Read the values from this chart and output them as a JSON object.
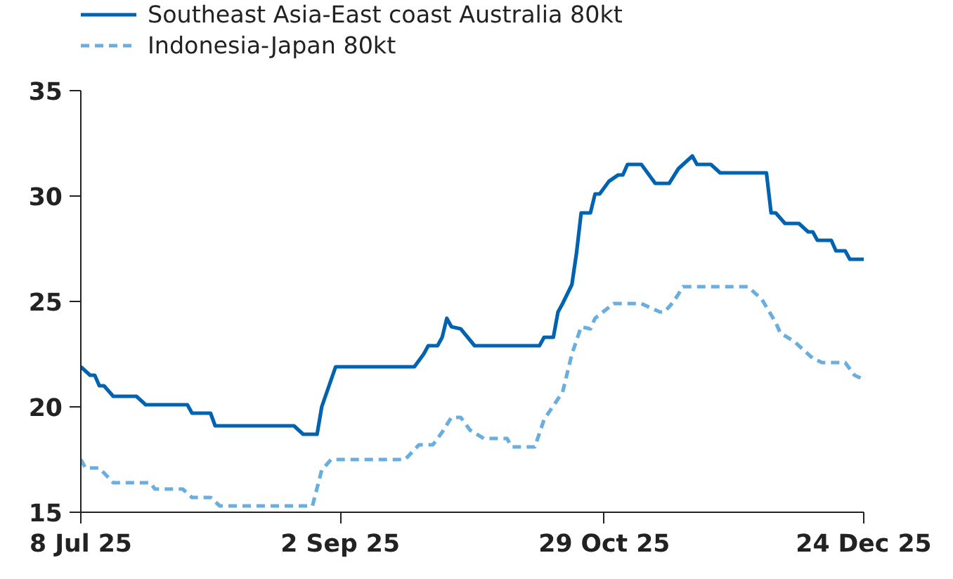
{
  "chart_data": {
    "type": "line",
    "legend": "top",
    "grid": false,
    "xlim": [
      "2025-07-08",
      "2025-12-24"
    ],
    "ylim": [
      15,
      35
    ],
    "yticks": [
      15,
      20,
      25,
      30,
      35
    ],
    "xticks": [
      {
        "value": "2025-07-08",
        "label": "8 Jul 25"
      },
      {
        "value": "2025-09-02",
        "label": "2 Sep 25"
      },
      {
        "value": "2025-10-29",
        "label": "29 Oct 25"
      },
      {
        "value": "2025-12-24",
        "label": "24 Dec 25"
      }
    ],
    "series": [
      {
        "name": "Southeast Asia-East coast Australia 80kt",
        "color": "#0063b0",
        "line_style": "solid",
        "x": [
          "2025-07-08",
          "2025-07-10",
          "2025-07-11",
          "2025-07-12",
          "2025-07-13",
          "2025-07-15",
          "2025-07-20",
          "2025-07-22",
          "2025-07-31",
          "2025-08-01",
          "2025-08-05",
          "2025-08-06",
          "2025-08-23",
          "2025-08-25",
          "2025-08-28",
          "2025-08-29",
          "2025-09-01",
          "2025-09-18",
          "2025-09-20",
          "2025-09-21",
          "2025-09-23",
          "2025-09-24",
          "2025-09-25",
          "2025-09-26",
          "2025-09-28",
          "2025-10-01",
          "2025-10-15",
          "2025-10-16",
          "2025-10-18",
          "2025-10-19",
          "2025-10-20",
          "2025-10-22",
          "2025-10-23",
          "2025-10-24",
          "2025-10-26",
          "2025-10-27",
          "2025-10-28",
          "2025-10-30",
          "2025-11-01",
          "2025-11-02",
          "2025-11-03",
          "2025-11-06",
          "2025-11-08",
          "2025-11-09",
          "2025-11-12",
          "2025-11-14",
          "2025-11-15",
          "2025-11-17",
          "2025-11-18",
          "2025-11-21",
          "2025-11-23",
          "2025-12-03",
          "2025-12-04",
          "2025-12-05",
          "2025-12-07",
          "2025-12-10",
          "2025-12-12",
          "2025-12-13",
          "2025-12-14",
          "2025-12-17",
          "2025-12-18",
          "2025-12-20",
          "2025-12-21",
          "2025-12-24"
        ],
        "values": [
          21.9,
          21.5,
          21.5,
          21.0,
          21.0,
          20.5,
          20.5,
          20.1,
          20.1,
          19.7,
          19.7,
          19.1,
          19.1,
          18.7,
          18.7,
          20.0,
          21.9,
          21.9,
          22.5,
          22.9,
          22.9,
          23.3,
          24.2,
          23.8,
          23.7,
          22.9,
          22.9,
          23.3,
          23.3,
          24.5,
          24.9,
          25.8,
          27.3,
          29.2,
          29.2,
          30.1,
          30.1,
          30.7,
          31.0,
          31.0,
          31.5,
          31.5,
          30.9,
          30.6,
          30.6,
          31.3,
          31.5,
          31.9,
          31.5,
          31.5,
          31.1,
          31.1,
          29.2,
          29.2,
          28.7,
          28.7,
          28.3,
          28.3,
          27.9,
          27.9,
          27.4,
          27.4,
          27.0,
          27.0
        ]
      },
      {
        "name": "Indonesia-Japan 80kt",
        "color": "#6aaee0",
        "line_style": "dashed",
        "x": [
          "2025-07-08",
          "2025-07-09",
          "2025-07-12",
          "2025-07-15",
          "2025-07-23",
          "2025-07-24",
          "2025-07-30",
          "2025-08-01",
          "2025-08-05",
          "2025-08-07",
          "2025-08-27",
          "2025-08-29",
          "2025-08-31",
          "2025-09-16",
          "2025-09-19",
          "2025-09-22",
          "2025-09-24",
          "2025-09-26",
          "2025-09-28",
          "2025-09-30",
          "2025-10-03",
          "2025-10-08",
          "2025-10-09",
          "2025-10-14",
          "2025-10-16",
          "2025-10-20",
          "2025-10-22",
          "2025-10-24",
          "2025-10-26",
          "2025-10-27",
          "2025-10-31",
          "2025-11-06",
          "2025-11-10",
          "2025-11-11",
          "2025-11-13",
          "2025-11-15",
          "2025-11-29",
          "2025-12-02",
          "2025-12-05",
          "2025-12-06",
          "2025-12-09",
          "2025-12-13",
          "2025-12-15",
          "2025-12-20",
          "2025-12-22",
          "2025-12-24"
        ],
        "values": [
          17.5,
          17.1,
          17.1,
          16.4,
          16.4,
          16.1,
          16.1,
          15.7,
          15.7,
          15.3,
          15.3,
          17.0,
          17.5,
          17.5,
          18.2,
          18.2,
          18.8,
          19.5,
          19.5,
          18.9,
          18.5,
          18.5,
          18.1,
          18.1,
          19.4,
          20.7,
          22.5,
          23.8,
          23.7,
          24.2,
          24.9,
          24.9,
          24.5,
          24.5,
          25.0,
          25.7,
          25.7,
          25.1,
          24.0,
          23.5,
          23.1,
          22.3,
          22.1,
          22.1,
          21.5,
          21.3
        ]
      }
    ]
  }
}
